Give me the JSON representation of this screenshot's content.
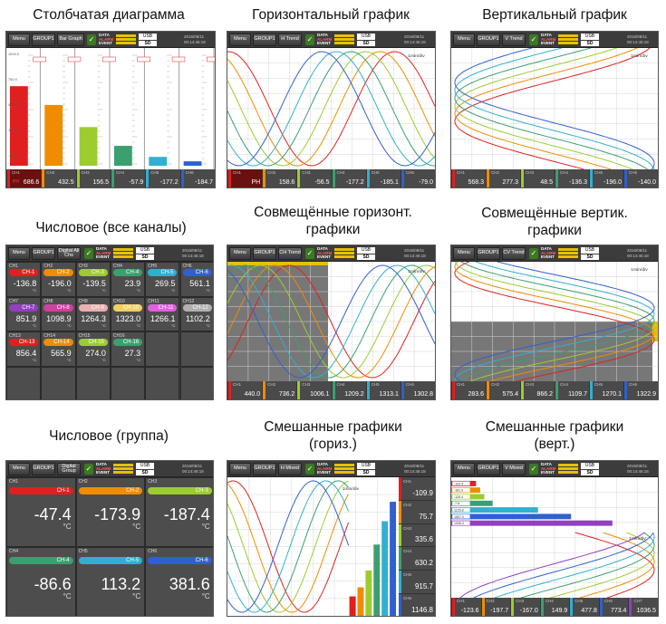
{
  "captions": {
    "bar": "Столбчатая диаграмма",
    "horiz": "Горизонтальный график",
    "vert": "Вертикальный график",
    "num_all": "Числовое (все каналы)",
    "combo_h_1": "Совмещённые горизонт.",
    "combo_h_2": "графики",
    "combo_v_1": "Совмещённые вертик.",
    "combo_v_2": "графики",
    "num_group": "Числовое (группа)",
    "mixed_h_1": "Смешанные графики",
    "mixed_h_2": "(гориз.)",
    "mixed_v_1": "Смешанные графики",
    "mixed_v_2": "(верт.)"
  },
  "topbar": {
    "menu": "Menu",
    "group": "GROUP1",
    "bar_mode": "Bar Graph",
    "h_mode": "H Trend",
    "v_mode": "V Trend",
    "num_all_mode": "Digital All Chs",
    "ch_mode": "CH Trend",
    "cv_mode": "CV Trend",
    "num_group_mode": "Digital Group",
    "h_mixed": "H Mixed",
    "v_mixed": "V Mixed",
    "data": "DATA",
    "alarm": "ALARM",
    "event": "EVENT",
    "usb": "USB",
    "sd": "SD",
    "date_1": "2016/08/11",
    "date_2": "00:14:46:18"
  },
  "timebase": "1min/div",
  "channel_colors": [
    "#e02020",
    "#f08c00",
    "#9ccc30",
    "#3aa070",
    "#30b0d0",
    "#3060d0",
    "#9040c0",
    "#d040a0",
    "#e8b0b0",
    "#f0d060",
    "#e060e0",
    "#b0b0b0"
  ],
  "bar_panel": {
    "scale": [
      "1000.0",
      "750.0",
      "400.0",
      "150.0",
      "-150.0"
    ],
    "values": [
      {
        "ch": "CH1",
        "value": "686.6",
        "level": 0.72
      },
      {
        "ch": "CH2",
        "value": "432.5",
        "level": 0.55
      },
      {
        "ch": "CH3",
        "value": "156.5",
        "level": 0.35
      },
      {
        "ch": "CH4",
        "value": "-57.9",
        "level": 0.18
      },
      {
        "ch": "CH5",
        "value": "-177.2",
        "level": 0.08
      },
      {
        "ch": "CH6",
        "value": "-184.7",
        "level": 0.04
      }
    ],
    "unit": "PH"
  },
  "horiz_values": [
    "PH",
    "158.6",
    "-56.5",
    "-177.2",
    "-185.1",
    "-79.0"
  ],
  "vert_values": [
    "568.3",
    "277.3",
    "48.5",
    "-136.3",
    "-196.0",
    "-140.0"
  ],
  "num_all": [
    {
      "n": "CH1",
      "label": "CH-1",
      "value": "-136.8",
      "unit": "°C"
    },
    {
      "n": "CH2",
      "label": "CH-2",
      "value": "-196.0",
      "unit": "°C"
    },
    {
      "n": "CH3",
      "label": "CH-3",
      "value": "-139.5",
      "unit": "°C"
    },
    {
      "n": "CH4",
      "label": "CH-4",
      "value": "23.9",
      "unit": "°C"
    },
    {
      "n": "CH5",
      "label": "CH-5",
      "value": "269.5",
      "unit": "°C"
    },
    {
      "n": "CH6",
      "label": "CH-6",
      "value": "561.1",
      "unit": "°C"
    },
    {
      "n": "CH7",
      "label": "CH-7",
      "value": "851.9",
      "unit": "°C"
    },
    {
      "n": "CH8",
      "label": "CH-8",
      "value": "1098.9",
      "unit": "°C"
    },
    {
      "n": "CH9",
      "label": "CH-9",
      "value": "1264.3",
      "unit": "°C"
    },
    {
      "n": "CH10",
      "label": "CH-10",
      "value": "1323.0",
      "unit": "°C"
    },
    {
      "n": "CH11",
      "label": "CH-11",
      "value": "1266.1",
      "unit": "°C"
    },
    {
      "n": "CH12",
      "label": "CH-12",
      "value": "1102.2",
      "unit": "°C"
    },
    {
      "n": "CH13",
      "label": "CH-13",
      "value": "856.4",
      "unit": "°C"
    },
    {
      "n": "CH14",
      "label": "CH-14",
      "value": "565.9",
      "unit": "°C"
    },
    {
      "n": "CH15",
      "label": "CH-15",
      "value": "274.0",
      "unit": "°C"
    },
    {
      "n": "CH16",
      "label": "CH-16",
      "value": "27.3",
      "unit": "°C"
    }
  ],
  "combo_h_values": [
    "440.0",
    "736.2",
    "1006.1",
    "1209.2",
    "1313.1",
    "1302.8"
  ],
  "combo_v_values": [
    "283.6",
    "575.4",
    "866.2",
    "1109.7",
    "1270.1",
    "1322.9"
  ],
  "num_group": [
    {
      "n": "CH1",
      "label": "CH-1",
      "value": "-47.4",
      "unit": "°C"
    },
    {
      "n": "CH2",
      "label": "CH-2",
      "value": "-173.9",
      "unit": "°C"
    },
    {
      "n": "CH3",
      "label": "CH-3",
      "value": "-187.4",
      "unit": "°C"
    },
    {
      "n": "CH4",
      "label": "CH-4",
      "value": "-86.6",
      "unit": "°C"
    },
    {
      "n": "CH5",
      "label": "CH-5",
      "value": "113.2",
      "unit": "°C"
    },
    {
      "n": "CH6",
      "label": "CH-6",
      "value": "381.6",
      "unit": "°C"
    }
  ],
  "mixed_h_values": [
    "-109.9",
    "75.7",
    "335.6",
    "630.2",
    "915.7",
    "1146.8"
  ],
  "mixed_v_values": [
    "-123.6",
    "-197.7",
    "-167.0",
    "149.9",
    "477.8",
    "773.4",
    "1036.5"
  ],
  "mixed_v_bar_labels": [
    "-109.9",
    "-181.9",
    "-125.4",
    "-7.8",
    "1125.8",
    "1507.0",
    "1008.3"
  ]
}
